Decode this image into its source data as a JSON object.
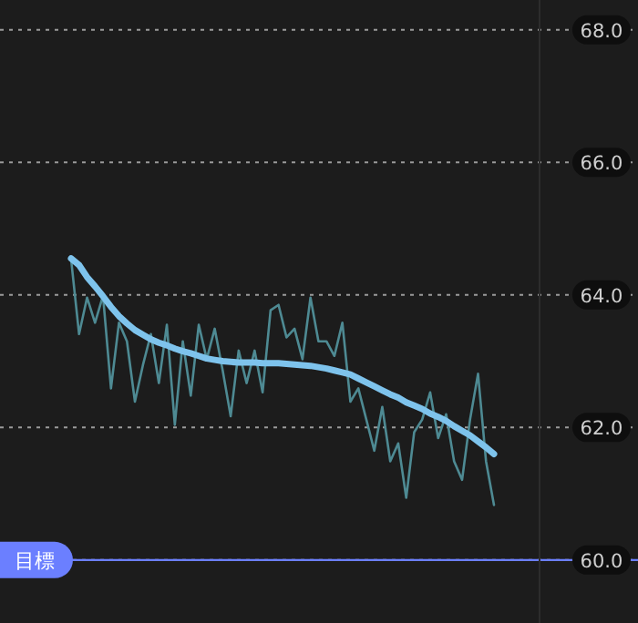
{
  "chart_data": {
    "type": "line",
    "categories": [
      null,
      null,
      null,
      null,
      null,
      null,
      null,
      null,
      null,
      null,
      null,
      null,
      null,
      null,
      null,
      null,
      null,
      null,
      null,
      null,
      null,
      null,
      null,
      null,
      null,
      null,
      null,
      null,
      null,
      null,
      null,
      null,
      null,
      null,
      null,
      null,
      null,
      null,
      null,
      null,
      null,
      null,
      null,
      null,
      null,
      null,
      null,
      null,
      null,
      null,
      null,
      null,
      null,
      null
    ],
    "series": [
      {
        "color": "#4e8a93",
        "values": [
          64.54,
          63.41,
          63.96,
          63.58,
          63.99,
          62.59,
          63.58,
          63.3,
          62.39,
          62.94,
          63.41,
          62.67,
          63.55,
          62.04,
          63.3,
          62.48,
          63.55,
          63.03,
          63.49,
          62.86,
          62.17,
          63.16,
          62.67,
          63.16,
          62.53,
          63.77,
          63.85,
          63.36,
          63.49,
          63.03,
          63.96,
          63.3,
          63.3,
          63.08,
          63.58,
          62.39,
          62.59,
          62.12,
          61.65,
          62.31,
          61.49,
          61.76,
          60.94,
          61.93,
          62.12,
          62.53,
          61.84,
          62.2,
          61.49,
          61.21,
          62.12,
          62.81,
          61.49,
          60.83
        ]
      },
      {
        "color": "#7ec3ec",
        "values": [
          64.55,
          64.45,
          64.27,
          64.13,
          63.98,
          63.82,
          63.68,
          63.57,
          63.47,
          63.4,
          63.33,
          63.28,
          63.24,
          63.19,
          63.15,
          63.12,
          63.08,
          63.04,
          63.02,
          63.0,
          62.99,
          62.98,
          62.98,
          62.98,
          62.97,
          62.97,
          62.97,
          62.96,
          62.95,
          62.94,
          62.93,
          62.91,
          62.89,
          62.86,
          62.83,
          62.8,
          62.74,
          62.68,
          62.62,
          62.56,
          62.5,
          62.45,
          62.38,
          62.33,
          62.28,
          62.21,
          62.16,
          62.1,
          62.02,
          61.95,
          61.88,
          61.79,
          61.7,
          61.6
        ]
      }
    ],
    "ylim": [
      59.05,
      68.45
    ],
    "yticks": [
      {
        "value": 60,
        "label": "60.0"
      },
      {
        "value": 62,
        "label": "62.0"
      },
      {
        "value": 64,
        "label": "64.0"
      },
      {
        "value": 66,
        "label": "66.0"
      },
      {
        "value": 68,
        "label": "68.0"
      }
    ],
    "ref_lines": [
      {
        "axis": "y",
        "value": 60,
        "label": "目標",
        "color": "#6b7fff"
      }
    ],
    "grid": "y",
    "tick_labels": "y",
    "marker": "none",
    "line_style": "solid"
  }
}
